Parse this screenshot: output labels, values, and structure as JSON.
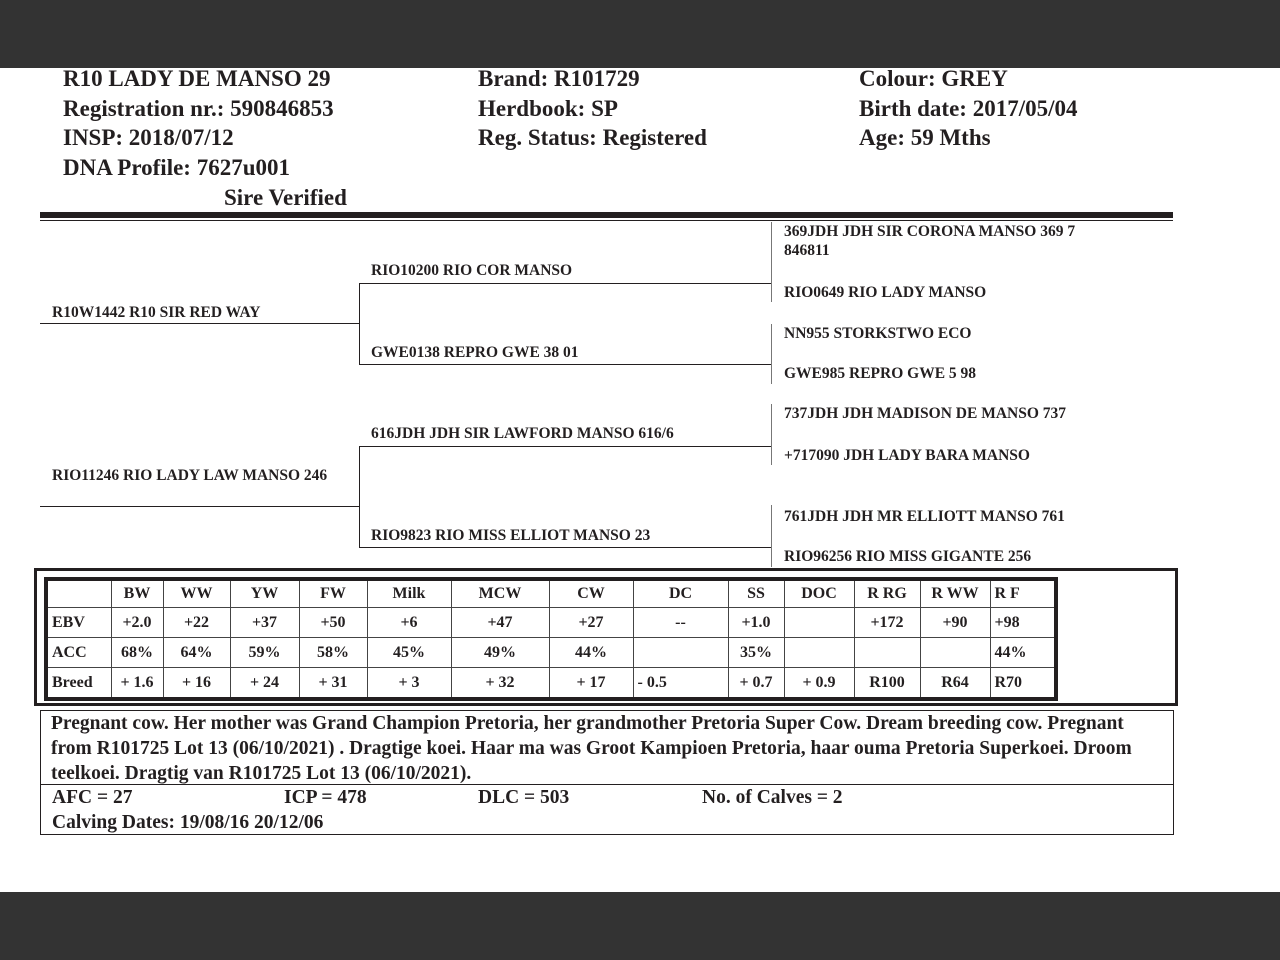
{
  "header": {
    "name": "R10 LADY DE MANSO 29",
    "registration": "Registration nr.: 590846853",
    "insp": "INSP: 2018/07/12",
    "dna": "DNA Profile:  7627u001",
    "sire_verified": "Sire Verified",
    "brand": "Brand:  R101729",
    "herdbook": "Herdbook: SP",
    "reg_status": "Reg. Status: Registered",
    "colour": "Colour:  GREY",
    "birth_date": "Birth date:  2017/05/04",
    "age": "Age: 59 Mths"
  },
  "pedigree": {
    "sire": "R10W1442 R10 SIR RED WAY",
    "dam": "RIO11246 RIO LADY LAW MANSO 246",
    "ss": "RIO10200 RIO COR MANSO",
    "sd": "GWE0138 REPRO GWE 38 01",
    "ds": "616JDH JDH SIR LAWFORD MANSO 616/6",
    "dd": "RIO9823 RIO MISS ELLIOT MANSO 23",
    "gg": [
      "369JDH JDH SIR CORONA MANSO 369 7 846811",
      "RIO0649 RIO LADY MANSO",
      "NN955 STORKSTWO ECO",
      "GWE985 REPRO GWE 5 98",
      "737JDH JDH MADISON DE MANSO 737",
      "+717090 JDH LADY BARA MANSO",
      "761JDH JDH MR ELLIOTT MANSO 761",
      "RIO96256 RIO MISS GIGANTE 256"
    ]
  },
  "ebv": {
    "headers": [
      "",
      "BW",
      "WW",
      "YW",
      "FW",
      "Milk",
      "MCW",
      "CW",
      "DC",
      "SS",
      "DOC",
      "R RG",
      "R WW",
      "R F"
    ],
    "rows": [
      [
        "EBV",
        "+2.0",
        "+22",
        "+37",
        "+50",
        "+6",
        "+47",
        "+27",
        "--",
        "+1.0",
        "",
        "+172",
        "+90",
        "+98"
      ],
      [
        "ACC",
        "68%",
        "64%",
        "59%",
        "58%",
        "45%",
        "49%",
        "44%",
        "",
        "35%",
        "",
        "",
        "",
        "44%"
      ],
      [
        "Breed",
        "+ 1.6",
        "+ 16",
        "+ 24",
        "+ 31",
        "+ 3",
        "+ 32",
        "+ 17",
        "- 0.5",
        "+ 0.7",
        "+ 0.9",
        "R100",
        "R64",
        "R70"
      ]
    ]
  },
  "notes": {
    "comment": "Pregnant cow. Her mother was Grand Champion Pretoria, her grandmother Pretoria Super Cow. Dream breeding cow. Pregnant from R101725 Lot 13  (06/10/2021) . Dragtige koei. Haar ma was Groot Kampioen Pretoria, haar ouma Pretoria Superkoei. Droom teelkoei. Dragtig van R101725 Lot 13 (06/10/2021).",
    "afc": "AFC = 27",
    "icp": "ICP = 478",
    "dlc": "DLC = 503",
    "calves": "No. of Calves = 2",
    "calving_dates": "Calving Dates: 19/08/16  20/12/06"
  }
}
